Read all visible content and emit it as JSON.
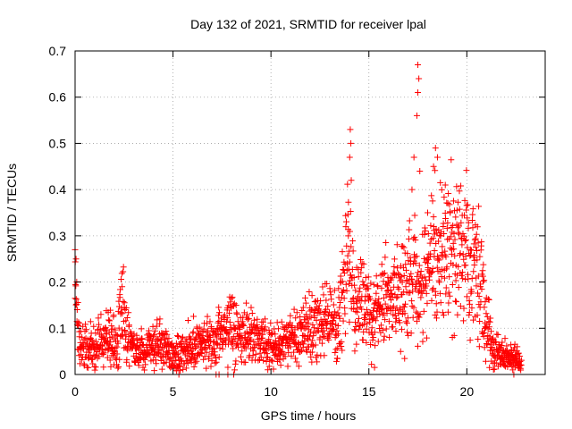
{
  "chart_data": {
    "type": "scatter",
    "title": "Day 132 of 2021, SRMTID for receiver lpal",
    "xlabel": "GPS time / hours",
    "ylabel": "SRMTID / TECUs",
    "xlim": [
      0,
      24
    ],
    "ylim": [
      0,
      0.7
    ],
    "xticks": [
      0,
      5,
      10,
      15,
      20
    ],
    "yticks": [
      0,
      0.1,
      0.2,
      0.3,
      0.4,
      0.5,
      0.6,
      0.7
    ],
    "xtick_labels": [
      "0",
      "5",
      "10",
      "15",
      "20"
    ],
    "ytick_labels": [
      "0",
      "0.1",
      "0.2",
      "0.3",
      "0.4",
      "0.5",
      "0.6",
      "0.7"
    ],
    "grid": true,
    "marker": "+",
    "color": "#ff0000",
    "trend": [
      [
        0.0,
        0.22
      ],
      [
        0.1,
        0.12
      ],
      [
        0.3,
        0.06
      ],
      [
        0.6,
        0.055
      ],
      [
        1.0,
        0.06
      ],
      [
        1.4,
        0.07
      ],
      [
        1.8,
        0.08
      ],
      [
        2.1,
        0.06
      ],
      [
        2.4,
        0.15
      ],
      [
        2.6,
        0.1
      ],
      [
        3.0,
        0.05
      ],
      [
        3.5,
        0.05
      ],
      [
        4.0,
        0.06
      ],
      [
        4.5,
        0.07
      ],
      [
        5.0,
        0.04
      ],
      [
        5.5,
        0.05
      ],
      [
        6.0,
        0.06
      ],
      [
        6.5,
        0.07
      ],
      [
        7.0,
        0.06
      ],
      [
        7.5,
        0.09
      ],
      [
        8.0,
        0.1
      ],
      [
        8.5,
        0.09
      ],
      [
        9.0,
        0.08
      ],
      [
        9.5,
        0.07
      ],
      [
        10.0,
        0.06
      ],
      [
        10.5,
        0.07
      ],
      [
        11.0,
        0.08
      ],
      [
        11.5,
        0.09
      ],
      [
        12.0,
        0.1
      ],
      [
        12.5,
        0.11
      ],
      [
        13.0,
        0.12
      ],
      [
        13.4,
        0.1
      ],
      [
        13.7,
        0.22
      ],
      [
        13.9,
        0.28
      ],
      [
        14.1,
        0.22
      ],
      [
        14.4,
        0.14
      ],
      [
        14.8,
        0.16
      ],
      [
        15.2,
        0.12
      ],
      [
        15.6,
        0.15
      ],
      [
        16.0,
        0.18
      ],
      [
        16.4,
        0.16
      ],
      [
        16.8,
        0.17
      ],
      [
        17.2,
        0.22
      ],
      [
        17.6,
        0.18
      ],
      [
        18.0,
        0.2
      ],
      [
        18.3,
        0.3
      ],
      [
        18.7,
        0.25
      ],
      [
        19.0,
        0.28
      ],
      [
        19.3,
        0.26
      ],
      [
        19.6,
        0.27
      ],
      [
        20.0,
        0.26
      ],
      [
        20.4,
        0.22
      ],
      [
        20.7,
        0.2
      ],
      [
        21.0,
        0.12
      ],
      [
        21.3,
        0.06
      ],
      [
        21.7,
        0.04
      ],
      [
        22.1,
        0.04
      ],
      [
        22.5,
        0.03
      ],
      [
        22.8,
        0.02
      ]
    ],
    "highlights": [
      [
        14.05,
        0.53
      ],
      [
        14.08,
        0.5
      ],
      [
        14.02,
        0.47
      ],
      [
        14.1,
        0.42
      ],
      [
        13.95,
        0.3
      ],
      [
        17.5,
        0.67
      ],
      [
        17.55,
        0.64
      ],
      [
        17.5,
        0.61
      ],
      [
        17.45,
        0.56
      ],
      [
        17.3,
        0.47
      ],
      [
        17.6,
        0.44
      ],
      [
        17.2,
        0.4
      ],
      [
        18.4,
        0.49
      ],
      [
        18.5,
        0.47
      ],
      [
        18.3,
        0.45
      ],
      [
        18.9,
        0.41
      ],
      [
        18.0,
        0.35
      ],
      [
        0.0,
        0.27
      ],
      [
        0.05,
        0.25
      ],
      [
        2.4,
        0.19
      ]
    ],
    "zero_points": [
      5.3,
      7.2,
      7.35,
      7.8,
      8.1,
      22.4
    ]
  }
}
